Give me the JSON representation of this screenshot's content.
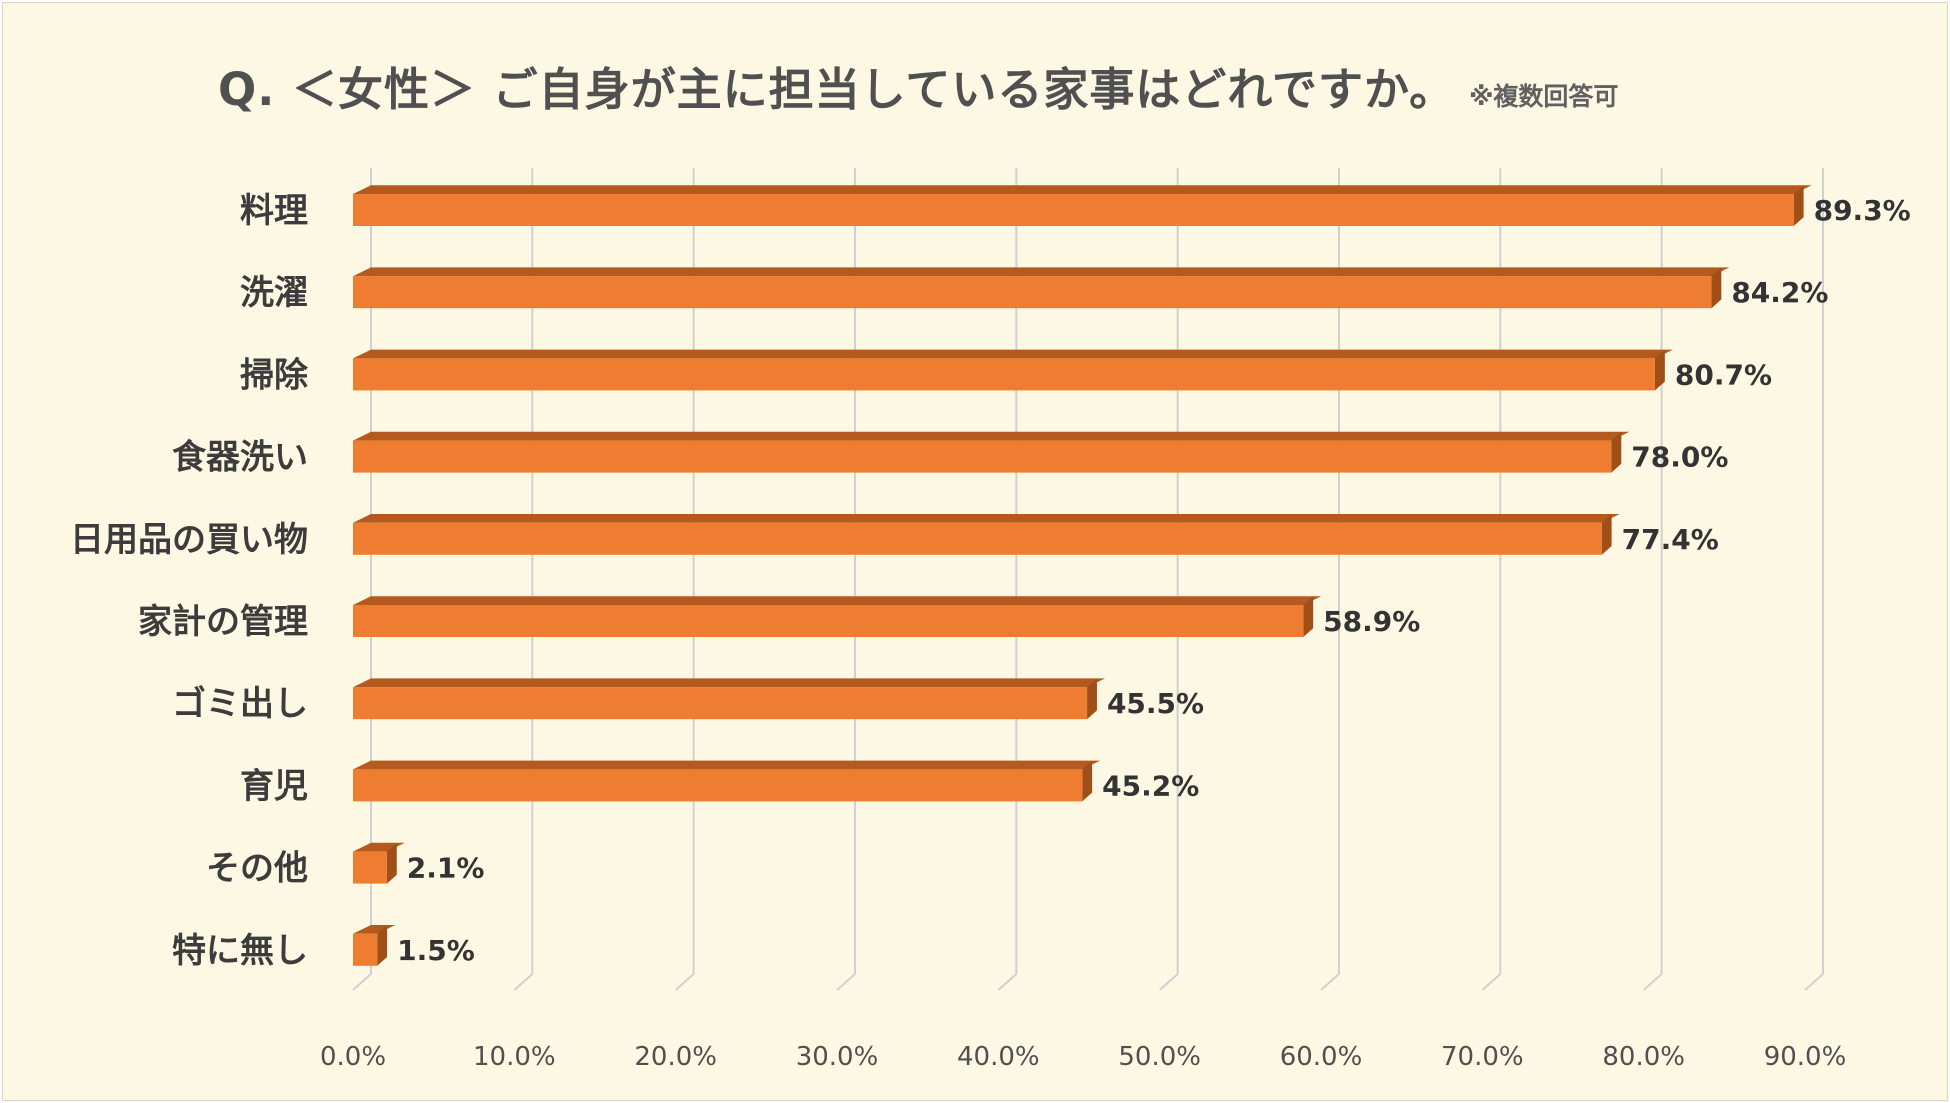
{
  "title": "Q. ＜女性＞ ご自身が主に担当している家事はどれですか。",
  "note": "※複数回答可",
  "colors": {
    "background": "#fdf8e4",
    "bar_front": "#ee7d31",
    "bar_top": "#b55a1e",
    "bar_side": "#a04f19",
    "grid": "#d0d0d0"
  },
  "chart_data": {
    "type": "bar",
    "orientation": "horizontal",
    "categories": [
      "料理",
      "洗濯",
      "掃除",
      "食器洗い",
      "日用品の買い物",
      "家計の管理",
      "ゴミ出し",
      "育児",
      "その他",
      "特に無し"
    ],
    "values": [
      89.3,
      84.2,
      80.7,
      78.0,
      77.4,
      58.9,
      45.5,
      45.2,
      2.1,
      1.5
    ],
    "value_labels": [
      "89.3%",
      "84.2%",
      "80.7%",
      "78.0%",
      "77.4%",
      "58.9%",
      "45.5%",
      "45.2%",
      "2.1%",
      "1.5%"
    ],
    "xlim": [
      0,
      90
    ],
    "ticks": [
      "0.0%",
      "10.0%",
      "20.0%",
      "30.0%",
      "40.0%",
      "50.0%",
      "60.0%",
      "70.0%",
      "80.0%",
      "90.0%"
    ],
    "grid": true,
    "legend": "none"
  }
}
